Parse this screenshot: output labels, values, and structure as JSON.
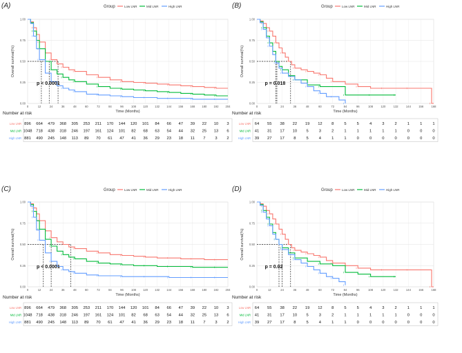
{
  "legend": {
    "title": "Group",
    "items": [
      {
        "name": "Low LNR",
        "color": "#F8766D"
      },
      {
        "name": "Mid LNR",
        "color": "#00BA38"
      },
      {
        "name": "High LNR",
        "color": "#619CFF"
      }
    ]
  },
  "risk_title": "Number at risk",
  "ylabel": "Overall survival(%)",
  "xlabel": "Time (Months)",
  "ytick_labels": [
    "0.00",
    "0.25",
    "0.50",
    "0.75",
    "1.00"
  ],
  "chart_data": [
    {
      "panel": "(A)",
      "type": "line",
      "step": true,
      "xlim": [
        0,
        204
      ],
      "ylim": [
        0,
        1
      ],
      "xticks": [
        0,
        12,
        24,
        36,
        48,
        60,
        72,
        84,
        96,
        108,
        120,
        132,
        144,
        156,
        168,
        180,
        192,
        204
      ],
      "pvalue": "p < 0.0001",
      "median": [
        31,
        22,
        14
      ],
      "series": [
        {
          "name": "Low LNR",
          "x": [
            0,
            3,
            6,
            9,
            12,
            18,
            24,
            30,
            36,
            42,
            48,
            60,
            72,
            84,
            96,
            108,
            120,
            132,
            144,
            156,
            168,
            180,
            192,
            204
          ],
          "y": [
            1,
            0.97,
            0.9,
            0.82,
            0.73,
            0.6,
            0.52,
            0.47,
            0.43,
            0.4,
            0.38,
            0.34,
            0.31,
            0.28,
            0.26,
            0.25,
            0.24,
            0.23,
            0.22,
            0.21,
            0.2,
            0.19,
            0.18,
            0.18
          ]
        },
        {
          "name": "Mid LNR",
          "x": [
            0,
            3,
            6,
            9,
            12,
            18,
            24,
            30,
            36,
            42,
            48,
            60,
            72,
            84,
            96,
            108,
            120,
            132,
            144,
            156,
            168,
            180,
            192,
            204
          ],
          "y": [
            1,
            0.96,
            0.86,
            0.75,
            0.65,
            0.5,
            0.4,
            0.35,
            0.31,
            0.28,
            0.26,
            0.23,
            0.2,
            0.18,
            0.17,
            0.16,
            0.15,
            0.14,
            0.13,
            0.12,
            0.11,
            0.1,
            0.09,
            0.09
          ]
        },
        {
          "name": "High LNR",
          "x": [
            0,
            3,
            6,
            9,
            12,
            18,
            24,
            30,
            36,
            42,
            48,
            60,
            72,
            84,
            96,
            108,
            120,
            132,
            144,
            156,
            168,
            180,
            192,
            204
          ],
          "y": [
            1,
            0.95,
            0.8,
            0.65,
            0.52,
            0.36,
            0.26,
            0.21,
            0.18,
            0.16,
            0.14,
            0.11,
            0.1,
            0.09,
            0.08,
            0.07,
            0.07,
            0.06,
            0.06,
            0.06,
            0.05,
            0.05,
            0.05,
            0.05
          ]
        }
      ],
      "risk_times": [
        0,
        12,
        24,
        36,
        48,
        60,
        72,
        84,
        96,
        108,
        120,
        132,
        144,
        156,
        168,
        180,
        192,
        204
      ],
      "risk": {
        "Low LNR": [
          896,
          664,
          479,
          368,
          305,
          253,
          211,
          170,
          144,
          120,
          101,
          84,
          66,
          47,
          39,
          22,
          10,
          3
        ],
        "Mid LNR": [
          1048,
          718,
          438,
          318,
          246,
          197,
          161,
          124,
          101,
          82,
          68,
          63,
          54,
          44,
          32,
          25,
          13,
          6
        ],
        "High LNR": [
          881,
          490,
          245,
          148,
          113,
          89,
          70,
          61,
          47,
          41,
          36,
          29,
          23,
          18,
          11,
          7,
          3,
          2
        ]
      }
    },
    {
      "panel": "(B)",
      "type": "line",
      "step": true,
      "xlim": [
        0,
        168
      ],
      "ylim": [
        0,
        1
      ],
      "xticks": [
        0,
        12,
        24,
        36,
        48,
        60,
        72,
        84,
        96,
        108,
        120,
        132,
        144,
        156,
        168
      ],
      "pvalue": "p = 0.018",
      "median": [
        32,
        19,
        18
      ],
      "series": [
        {
          "name": "Low LNR",
          "x": [
            0,
            3,
            6,
            9,
            12,
            15,
            18,
            21,
            24,
            27,
            30,
            33,
            36,
            42,
            48,
            54,
            60,
            66,
            72,
            84,
            96,
            108,
            120,
            132,
            144,
            156,
            166,
            168
          ],
          "y": [
            1,
            0.98,
            0.95,
            0.9,
            0.86,
            0.8,
            0.72,
            0.66,
            0.6,
            0.55,
            0.5,
            0.46,
            0.42,
            0.4,
            0.38,
            0.36,
            0.34,
            0.3,
            0.26,
            0.23,
            0.2,
            0.18,
            0.18,
            0.18,
            0.18,
            0.18,
            0.0,
            0.0
          ]
        },
        {
          "name": "Mid LNR",
          "x": [
            0,
            3,
            6,
            9,
            12,
            15,
            18,
            21,
            24,
            30,
            36,
            48,
            60,
            72,
            84,
            96,
            108,
            120,
            132
          ],
          "y": [
            1,
            0.97,
            0.9,
            0.8,
            0.72,
            0.62,
            0.5,
            0.44,
            0.4,
            0.33,
            0.28,
            0.22,
            0.2,
            0.2,
            0.1,
            0.1,
            0.1,
            0.1,
            0.1
          ]
        },
        {
          "name": "High LNR",
          "x": [
            0,
            3,
            6,
            9,
            12,
            15,
            18,
            21,
            24,
            30,
            36,
            42,
            48,
            54,
            60,
            66,
            72,
            78,
            84
          ],
          "y": [
            1,
            0.96,
            0.88,
            0.78,
            0.68,
            0.58,
            0.48,
            0.42,
            0.36,
            0.32,
            0.28,
            0.24,
            0.2,
            0.15,
            0.12,
            0.08,
            0.08,
            0.04,
            0.0
          ]
        }
      ],
      "risk_times": [
        0,
        12,
        24,
        36,
        48,
        60,
        72,
        84,
        96,
        108,
        120,
        132,
        144,
        156,
        168
      ],
      "risk": {
        "Low LNR": [
          64,
          55,
          38,
          22,
          19,
          12,
          8,
          5,
          5,
          4,
          3,
          2,
          1,
          1,
          1
        ],
        "Mid LNR": [
          41,
          31,
          17,
          10,
          5,
          3,
          2,
          1,
          1,
          1,
          1,
          1,
          0,
          0,
          0
        ],
        "High LNR": [
          39,
          27,
          17,
          8,
          5,
          4,
          1,
          1,
          0,
          0,
          0,
          0,
          0,
          0,
          0
        ]
      }
    },
    {
      "panel": "(C)",
      "type": "line",
      "step": true,
      "xlim": [
        0,
        204
      ],
      "ylim": [
        0,
        1
      ],
      "xticks": [
        0,
        12,
        24,
        36,
        48,
        60,
        72,
        84,
        96,
        108,
        120,
        132,
        144,
        156,
        168,
        180,
        192,
        204
      ],
      "pvalue": "p < 0.0001",
      "median": [
        44,
        24,
        16
      ],
      "series": [
        {
          "name": "Low LNR",
          "x": [
            0,
            3,
            6,
            9,
            12,
            18,
            24,
            30,
            36,
            42,
            48,
            60,
            72,
            84,
            96,
            108,
            120,
            132,
            144,
            156,
            168,
            180,
            192,
            204
          ],
          "y": [
            1,
            0.98,
            0.93,
            0.86,
            0.78,
            0.66,
            0.58,
            0.53,
            0.5,
            0.47,
            0.45,
            0.42,
            0.4,
            0.38,
            0.37,
            0.36,
            0.35,
            0.34,
            0.34,
            0.33,
            0.33,
            0.32,
            0.32,
            0.32
          ]
        },
        {
          "name": "Mid LNR",
          "x": [
            0,
            3,
            6,
            9,
            12,
            18,
            24,
            30,
            36,
            42,
            48,
            60,
            72,
            84,
            96,
            108,
            120,
            132,
            144,
            156,
            168,
            180,
            192,
            204
          ],
          "y": [
            1,
            0.97,
            0.89,
            0.78,
            0.68,
            0.56,
            0.48,
            0.42,
            0.38,
            0.35,
            0.33,
            0.3,
            0.28,
            0.27,
            0.26,
            0.25,
            0.25,
            0.24,
            0.24,
            0.24,
            0.23,
            0.23,
            0.23,
            0.23
          ]
        },
        {
          "name": "High LNR",
          "x": [
            0,
            3,
            6,
            9,
            12,
            18,
            24,
            30,
            36,
            42,
            48,
            60,
            72,
            84,
            96,
            108,
            120,
            132,
            144,
            156,
            168,
            180,
            192,
            204
          ],
          "y": [
            1,
            0.95,
            0.82,
            0.67,
            0.55,
            0.4,
            0.3,
            0.24,
            0.2,
            0.18,
            0.16,
            0.14,
            0.13,
            0.13,
            0.12,
            0.12,
            0.12,
            0.12,
            0.11,
            0.11,
            0.11,
            0.11,
            0.11,
            0.11
          ]
        }
      ],
      "risk_times": [
        0,
        12,
        24,
        36,
        48,
        60,
        72,
        84,
        96,
        108,
        120,
        132,
        144,
        156,
        168,
        180,
        192,
        204
      ],
      "risk": {
        "Low LNR": [
          896,
          664,
          479,
          368,
          305,
          253,
          211,
          170,
          144,
          120,
          101,
          84,
          66,
          47,
          39,
          22,
          10,
          3
        ],
        "Mid LNR": [
          1048,
          718,
          438,
          318,
          246,
          197,
          161,
          124,
          101,
          82,
          68,
          63,
          54,
          44,
          32,
          25,
          13,
          6
        ],
        "High LNR": [
          881,
          490,
          245,
          148,
          113,
          89,
          70,
          61,
          47,
          41,
          36,
          29,
          23,
          18,
          11,
          7,
          3,
          2
        ]
      }
    },
    {
      "panel": "(D)",
      "type": "line",
      "step": true,
      "xlim": [
        0,
        168
      ],
      "ylim": [
        0,
        1
      ],
      "xticks": [
        0,
        12,
        24,
        36,
        48,
        60,
        72,
        84,
        96,
        108,
        120,
        132,
        144,
        156,
        168
      ],
      "pvalue": "p = 0.02",
      "median": [
        32,
        24,
        21
      ],
      "series": [
        {
          "name": "Low LNR",
          "x": [
            0,
            3,
            6,
            9,
            12,
            15,
            18,
            21,
            24,
            27,
            30,
            33,
            36,
            42,
            48,
            54,
            60,
            66,
            72,
            84,
            96,
            108,
            120,
            132,
            144,
            156,
            166,
            168
          ],
          "y": [
            1,
            0.98,
            0.95,
            0.9,
            0.86,
            0.8,
            0.74,
            0.68,
            0.62,
            0.56,
            0.5,
            0.46,
            0.43,
            0.41,
            0.39,
            0.37,
            0.35,
            0.31,
            0.28,
            0.25,
            0.22,
            0.2,
            0.2,
            0.2,
            0.2,
            0.2,
            0.0,
            0.0
          ]
        },
        {
          "name": "Mid LNR",
          "x": [
            0,
            3,
            6,
            9,
            12,
            15,
            18,
            21,
            24,
            30,
            36,
            48,
            60,
            72,
            84,
            96,
            108,
            120,
            132
          ],
          "y": [
            1,
            0.97,
            0.9,
            0.82,
            0.74,
            0.64,
            0.56,
            0.5,
            0.46,
            0.4,
            0.34,
            0.3,
            0.27,
            0.25,
            0.17,
            0.15,
            0.12,
            0.12,
            0.12
          ]
        },
        {
          "name": "High LNR",
          "x": [
            0,
            3,
            6,
            9,
            12,
            15,
            18,
            21,
            24,
            30,
            36,
            42,
            48,
            54,
            60,
            66,
            72,
            78,
            84
          ],
          "y": [
            1,
            0.96,
            0.88,
            0.8,
            0.72,
            0.62,
            0.56,
            0.5,
            0.44,
            0.38,
            0.32,
            0.28,
            0.24,
            0.2,
            0.16,
            0.12,
            0.1,
            0.06,
            0.02
          ]
        }
      ],
      "risk_times": [
        0,
        12,
        24,
        36,
        48,
        60,
        72,
        84,
        96,
        108,
        120,
        132,
        144,
        156,
        168
      ],
      "risk": {
        "Low LNR": [
          64,
          55,
          38,
          22,
          19,
          12,
          8,
          5,
          5,
          4,
          3,
          2,
          1,
          1,
          1
        ],
        "Mid LNR": [
          41,
          31,
          17,
          10,
          5,
          3,
          2,
          1,
          1,
          1,
          1,
          1,
          0,
          0,
          0
        ],
        "High LNR": [
          39,
          27,
          17,
          8,
          5,
          4,
          1,
          1,
          0,
          0,
          0,
          0,
          0,
          0,
          0
        ]
      }
    }
  ]
}
